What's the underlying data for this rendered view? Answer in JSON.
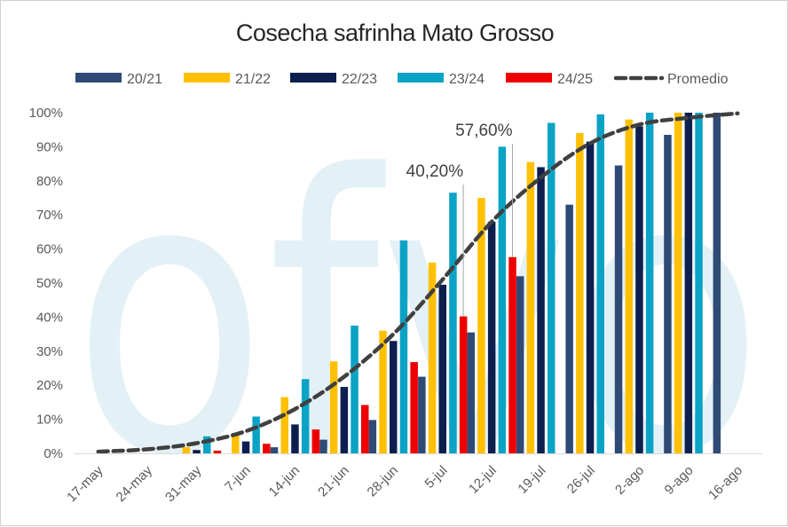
{
  "chart_data": {
    "type": "bar",
    "title": "Cosecha safrinha Mato Grosso",
    "categories": [
      "17-may",
      "24-may",
      "31-may",
      "7-jun",
      "14-jun",
      "21-jun",
      "28-jun",
      "5-jul",
      "12-jul",
      "19-jul",
      "26-jul",
      "2-ago",
      "9-ago",
      "16-ago"
    ],
    "yticks": [
      "0%",
      "10%",
      "20%",
      "30%",
      "40%",
      "50%",
      "60%",
      "70%",
      "80%",
      "90%",
      "100%"
    ],
    "ylim": [
      0,
      100
    ],
    "series": [
      {
        "name": "20/21",
        "color": "#2e4a75",
        "values": [
          0,
          0,
          0,
          0,
          1.8,
          4,
          9.8,
          22.5,
          35.5,
          52,
          73,
          84.5,
          93.5,
          100
        ]
      },
      {
        "name": "21/22",
        "color": "#ffc000",
        "values": [
          0,
          0,
          1.8,
          6,
          16.5,
          27,
          36,
          56,
          75,
          85.5,
          94,
          98,
          100,
          null
        ]
      },
      {
        "name": "22/23",
        "color": "#0c1f4e",
        "values": [
          0,
          0,
          1,
          3.5,
          8.5,
          19.5,
          33,
          49.5,
          68,
          84,
          91.5,
          96,
          100,
          null
        ]
      },
      {
        "name": "23/24",
        "color": "#0aa3c6",
        "values": [
          0,
          0,
          5,
          10.8,
          21.8,
          37.5,
          62.5,
          76.5,
          90,
          97,
          99.5,
          100,
          100,
          null
        ]
      },
      {
        "name": "24/25",
        "color": "#ee0000",
        "values": [
          0,
          0,
          0.8,
          2.8,
          7,
          14.2,
          26.8,
          40.2,
          57.6,
          null,
          null,
          null,
          null,
          null
        ]
      }
    ],
    "average": {
      "name": "Promedio",
      "color": "#404040",
      "values": [
        0.5,
        1.2,
        3,
        6.5,
        13,
        22.5,
        35,
        51,
        68,
        81,
        91,
        96.5,
        98.5,
        99.8
      ]
    },
    "annotations": [
      {
        "category": "5-jul",
        "text": "40,20%",
        "value": 40.2
      },
      {
        "category": "12-jul",
        "text": "57,60%",
        "value": 57.6
      }
    ]
  },
  "watermark": {
    "text": "ofvo",
    "color": "#e3f1f6"
  }
}
